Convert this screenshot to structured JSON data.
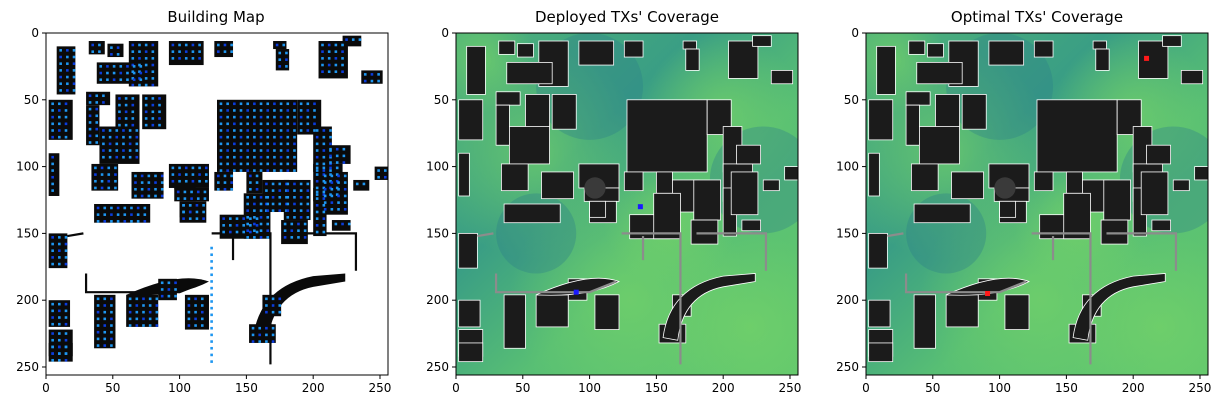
{
  "colors": {
    "building": "#0a0a0a",
    "free_space": "#ffffff",
    "candidate_tx": "#1e96f0",
    "candidate_tx_dark": "#0a3cdc",
    "coverage_high": "#5ec472",
    "coverage_mid": "#2e9a84",
    "coverage_low": "#2b7d8a",
    "deployed_tx": "#1a1aff",
    "optimal_tx": "#ff1a1a",
    "road_gray": "#8c8c8c"
  },
  "chart_data": [
    {
      "type": "heatmap",
      "title": "Building Map",
      "xlabel": "",
      "ylabel": "",
      "xlim": [
        0,
        256
      ],
      "ylim": [
        256,
        0
      ],
      "xticks": [
        0,
        50,
        100,
        150,
        200,
        250
      ],
      "yticks": [
        0,
        50,
        100,
        150,
        200,
        250
      ],
      "image_size": [
        256,
        256
      ],
      "content": "binary building map with candidate transmitter grid points"
    },
    {
      "type": "heatmap",
      "title": "Deployed TXs' Coverage",
      "xlabel": "",
      "ylabel": "",
      "xlim": [
        0,
        256
      ],
      "ylim": [
        256,
        0
      ],
      "xticks": [
        0,
        50,
        100,
        150,
        200,
        250
      ],
      "yticks": [
        0,
        50,
        100,
        150,
        200,
        250
      ],
      "image_size": [
        256,
        256
      ],
      "transmitters": [
        {
          "x": 138,
          "y": 130,
          "color": "#1a1aff"
        },
        {
          "x": 90,
          "y": 194,
          "color": "#1a1aff"
        }
      ]
    },
    {
      "type": "heatmap",
      "title": "Optimal TXs' Coverage",
      "xlabel": "",
      "ylabel": "",
      "xlim": [
        0,
        256
      ],
      "ylim": [
        256,
        0
      ],
      "xticks": [
        0,
        50,
        100,
        150,
        200,
        250
      ],
      "yticks": [
        0,
        50,
        100,
        150,
        200,
        250
      ],
      "image_size": [
        256,
        256
      ],
      "transmitters": [
        {
          "x": 210,
          "y": 19,
          "color": "#ff1a1a"
        },
        {
          "x": 91,
          "y": 195,
          "color": "#ff1a1a"
        }
      ]
    }
  ]
}
